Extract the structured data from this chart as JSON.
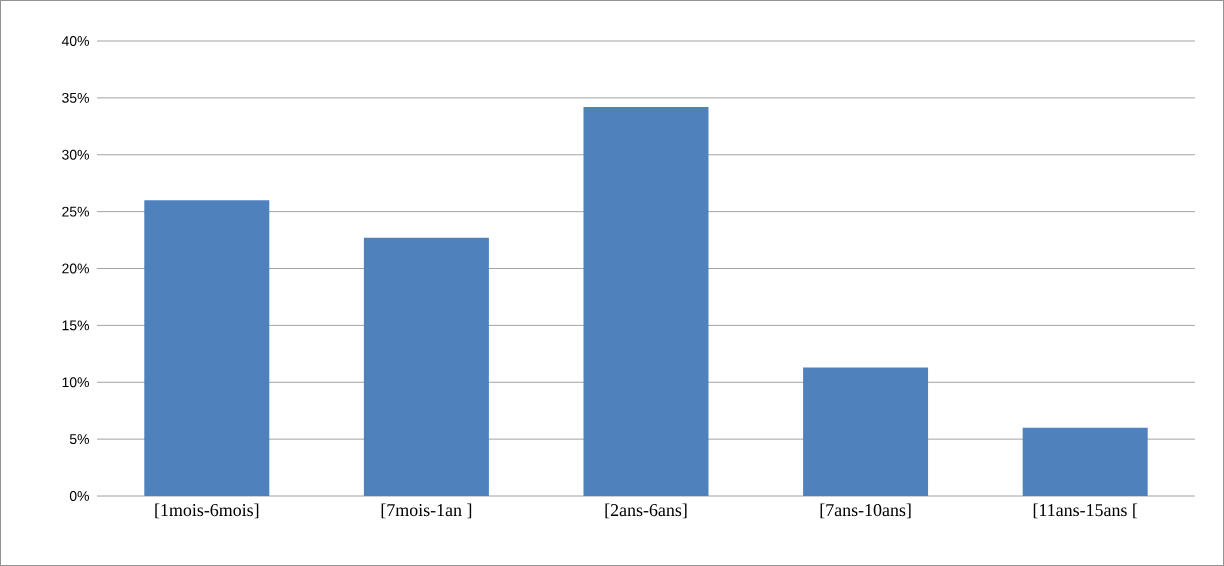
{
  "chart_data": {
    "type": "bar",
    "categories": [
      "[1mois-6mois]",
      "[7mois-1an ]",
      "[2ans-6ans]",
      "[7ans-10ans]",
      "[11ans-15ans ["
    ],
    "values": [
      26.0,
      22.7,
      34.2,
      11.3,
      6.0
    ],
    "color": "#4f81bd",
    "ylim": [
      0,
      40
    ],
    "yticks": [
      {
        "value": 0,
        "label": "0%"
      },
      {
        "value": 5,
        "label": "5%"
      },
      {
        "value": 10,
        "label": "10%"
      },
      {
        "value": 15,
        "label": "15%"
      },
      {
        "value": 20,
        "label": "20%"
      },
      {
        "value": 25,
        "label": "25%"
      },
      {
        "value": 30,
        "label": "30%"
      },
      {
        "value": 35,
        "label": "35%"
      },
      {
        "value": 40,
        "label": "40%"
      }
    ],
    "grid": "y"
  }
}
